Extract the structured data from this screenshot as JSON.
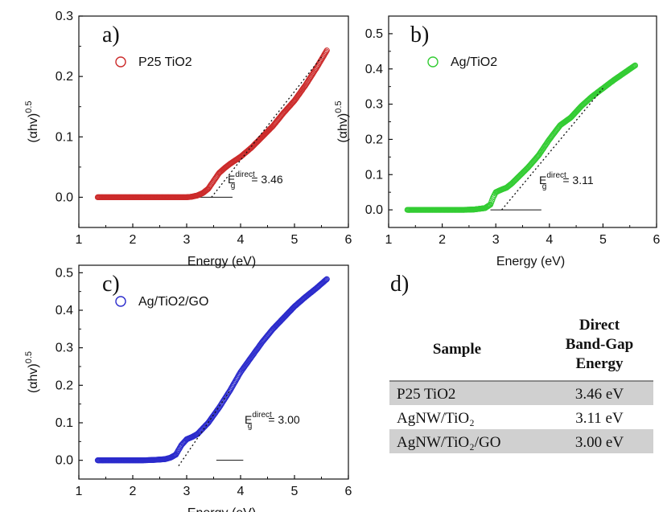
{
  "chart_data": [
    {
      "type": "scatter",
      "panel": "a)",
      "xlabel": "Energy (eV)",
      "ylabel": "(αhv)",
      "ylabel_sup": "0.5",
      "xlim": [
        1,
        6
      ],
      "ylim": [
        -0.05,
        0.3
      ],
      "xticks": [
        1,
        2,
        3,
        4,
        5,
        6
      ],
      "yticks": [
        0.0,
        0.1,
        0.2,
        0.3
      ],
      "ytick_labels": [
        "0.0",
        "0.1",
        "0.2",
        "0.3"
      ],
      "color": "#cc2b2b",
      "series": [
        {
          "name": "P25 TiO2",
          "x": [
            1.35,
            1.6,
            1.8,
            2.0,
            2.2,
            2.4,
            2.6,
            2.8,
            3.0,
            3.1,
            3.2,
            3.3,
            3.4,
            3.5,
            3.6,
            3.7,
            3.8,
            3.9,
            4.0,
            4.2,
            4.4,
            4.6,
            4.8,
            5.0,
            5.2,
            5.4,
            5.6
          ],
          "y": [
            0.0,
            0.0,
            0.0,
            0.0,
            0.0,
            0.0,
            0.0,
            0.0,
            0.0,
            0.001,
            0.003,
            0.007,
            0.014,
            0.027,
            0.04,
            0.048,
            0.055,
            0.061,
            0.067,
            0.082,
            0.1,
            0.118,
            0.14,
            0.16,
            0.185,
            0.213,
            0.243
          ]
        }
      ],
      "fit_line": {
        "x": [
          3.46,
          5.5
        ],
        "y": [
          0.0,
          0.232
        ]
      },
      "baseline": {
        "x": [
          2.9,
          3.85
        ],
        "y": [
          0.0,
          0.0
        ]
      },
      "annotation": {
        "base": "E",
        "sub": "g",
        "sup": "direct",
        "value": "= 3.46"
      }
    },
    {
      "type": "scatter",
      "panel": "b)",
      "xlabel": "Energy (eV)",
      "ylabel": "(αhv)",
      "ylabel_sup": "0.5",
      "xlim": [
        1,
        6
      ],
      "ylim": [
        -0.05,
        0.55
      ],
      "xticks": [
        1,
        2,
        3,
        4,
        5,
        6
      ],
      "yticks": [
        0.0,
        0.1,
        0.2,
        0.3,
        0.4,
        0.5
      ],
      "ytick_labels": [
        "0.0",
        "0.1",
        "0.2",
        "0.3",
        "0.4",
        "0.5"
      ],
      "color": "#33cc33",
      "series": [
        {
          "name": "Ag/TiO2",
          "x": [
            1.35,
            1.6,
            1.8,
            2.0,
            2.2,
            2.4,
            2.6,
            2.8,
            2.9,
            2.95,
            3.0,
            3.1,
            3.2,
            3.3,
            3.4,
            3.5,
            3.6,
            3.8,
            4.0,
            4.2,
            4.4,
            4.6,
            4.8,
            5.0,
            5.2,
            5.4,
            5.6
          ],
          "y": [
            0.0,
            0.0,
            0.0,
            0.0,
            0.0,
            0.0,
            0.001,
            0.005,
            0.015,
            0.035,
            0.05,
            0.057,
            0.063,
            0.075,
            0.09,
            0.105,
            0.12,
            0.155,
            0.2,
            0.24,
            0.262,
            0.295,
            0.322,
            0.345,
            0.368,
            0.389,
            0.41
          ]
        }
      ],
      "fit_line": {
        "x": [
          3.11,
          5.0
        ],
        "y": [
          0.0,
          0.345
        ]
      },
      "baseline": {
        "x": [
          2.9,
          3.85
        ],
        "y": [
          0.0,
          0.0
        ]
      },
      "annotation": {
        "base": "E",
        "sub": "g",
        "sup": "direct",
        "value": "= 3.11"
      }
    },
    {
      "type": "scatter",
      "panel": "c)",
      "xlabel": "Energy (eV)",
      "ylabel": "(αhv)",
      "ylabel_sup": "0.5",
      "xlim": [
        1,
        6
      ],
      "ylim": [
        -0.05,
        0.52
      ],
      "xticks": [
        1,
        2,
        3,
        4,
        5,
        6
      ],
      "yticks": [
        0.0,
        0.1,
        0.2,
        0.3,
        0.4,
        0.5
      ],
      "ytick_labels": [
        "0.0",
        "0.1",
        "0.2",
        "0.3",
        "0.4",
        "0.5"
      ],
      "color": "#2b2bcc",
      "series": [
        {
          "name": "Ag/TiO2/GO",
          "x": [
            1.35,
            1.6,
            1.8,
            2.0,
            2.2,
            2.4,
            2.6,
            2.7,
            2.8,
            2.9,
            3.0,
            3.1,
            3.2,
            3.3,
            3.4,
            3.6,
            3.8,
            4.0,
            4.2,
            4.4,
            4.6,
            4.8,
            5.0,
            5.2,
            5.4,
            5.6
          ],
          "y": [
            0.0,
            0.0,
            0.0,
            0.0,
            0.0,
            0.001,
            0.003,
            0.007,
            0.015,
            0.04,
            0.056,
            0.062,
            0.07,
            0.085,
            0.1,
            0.14,
            0.185,
            0.235,
            0.275,
            0.315,
            0.35,
            0.38,
            0.41,
            0.435,
            0.458,
            0.483
          ]
        }
      ],
      "fit_line": {
        "x": [
          2.85,
          3.8
        ],
        "y": [
          -0.015,
          0.185
        ]
      },
      "baseline": {
        "x": [
          3.55,
          4.05
        ],
        "y": [
          0.0,
          0.0
        ]
      },
      "annotation": {
        "base": "E",
        "sub": "g",
        "sup": "direct",
        "value": "= 3.00"
      }
    },
    {
      "type": "table",
      "panel": "d)",
      "headers": [
        "Sample",
        "Direct Band-Gap Energy"
      ],
      "header_lines": [
        "Direct",
        "Band-Gap",
        "Energy"
      ],
      "rows": [
        [
          "P25 TiO2",
          "3.46 eV"
        ],
        [
          "AgNW/TiO₂",
          "3.11 eV"
        ],
        [
          "AgNW/TiO₂/GO",
          "3.00 eV"
        ]
      ],
      "shade_color": "#d0d0d0"
    }
  ]
}
